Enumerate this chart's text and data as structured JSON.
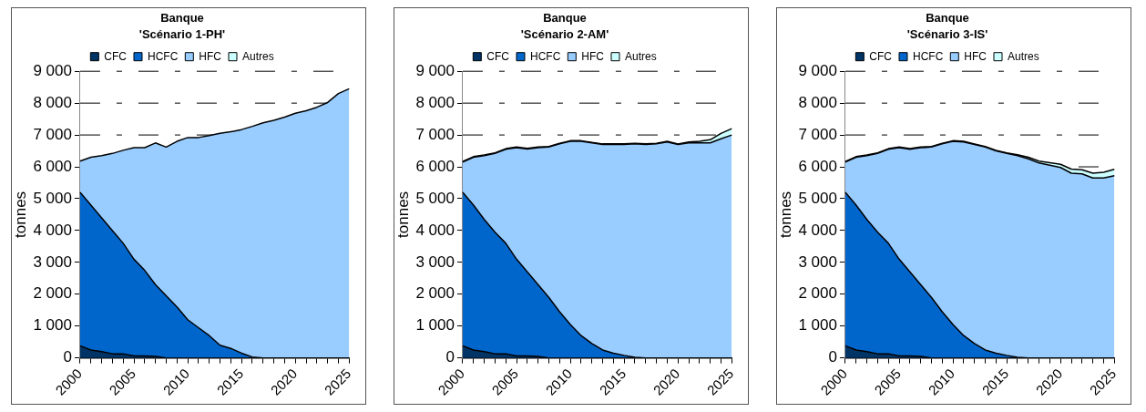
{
  "chart_data": [
    {
      "type": "area",
      "stacked": true,
      "title": "Banque",
      "subtitle": "'Scénario 1-PH'",
      "ylabel": "tonnes",
      "legend": "top",
      "grid": "y",
      "categories": [
        "2000",
        null,
        null,
        null,
        null,
        "2005",
        null,
        null,
        null,
        null,
        "2010",
        null,
        null,
        null,
        null,
        "2015",
        null,
        null,
        null,
        null,
        "2020",
        null,
        null,
        null,
        null,
        "2025"
      ],
      "ylim": [
        0,
        9000
      ],
      "yticks": [
        {
          "value": 0,
          "label": "0"
        },
        {
          "value": 1000,
          "label": "1 000"
        },
        {
          "value": 2000,
          "label": "2 000"
        },
        {
          "value": 3000,
          "label": "3 000"
        },
        {
          "value": 4000,
          "label": "4 000"
        },
        {
          "value": 5000,
          "label": "5 000"
        },
        {
          "value": 6000,
          "label": "6 000"
        },
        {
          "value": 7000,
          "label": "7 000"
        },
        {
          "value": 8000,
          "label": "8 000"
        },
        {
          "value": 9000,
          "label": "9 000"
        }
      ],
      "series": [
        {
          "name": "CFC",
          "color": "#003366",
          "values": [
            380,
            250,
            200,
            130,
            130,
            60,
            60,
            50,
            0,
            0,
            0,
            0,
            0,
            0,
            0,
            0,
            0,
            0,
            0,
            0,
            0,
            0,
            0,
            0,
            0,
            0
          ]
        },
        {
          "name": "HCFC",
          "color": "#0066cc",
          "values": [
            4820,
            4550,
            4200,
            3870,
            3470,
            3040,
            2690,
            2250,
            1950,
            1600,
            1200,
            950,
            700,
            400,
            300,
            150,
            30,
            0,
            0,
            0,
            0,
            0,
            0,
            0,
            0,
            0
          ]
        },
        {
          "name": "HFC",
          "color": "#99ccff",
          "values": [
            980,
            1500,
            1950,
            2420,
            2920,
            3500,
            3850,
            4450,
            4670,
            5200,
            5720,
            5970,
            6280,
            6650,
            6800,
            7020,
            7240,
            7380,
            7460,
            7560,
            7680,
            7760,
            7870,
            8020,
            8300,
            8450
          ]
        },
        {
          "name": "Autres",
          "color": "#ccffff",
          "values": [
            null,
            null,
            null,
            null,
            null,
            null,
            null,
            null,
            null,
            null,
            null,
            null,
            null,
            null,
            null,
            null,
            null,
            null,
            null,
            null,
            null,
            null,
            null,
            null,
            null,
            null
          ]
        }
      ]
    },
    {
      "type": "area",
      "stacked": true,
      "title": "Banque",
      "subtitle": "'Scénario 2-AM'",
      "ylabel": "tonnes",
      "legend": "top",
      "grid": "y",
      "categories": [
        "2000",
        null,
        null,
        null,
        null,
        "2005",
        null,
        null,
        null,
        null,
        "2010",
        null,
        null,
        null,
        null,
        "2015",
        null,
        null,
        null,
        null,
        "2020",
        null,
        null,
        null,
        null,
        "2025"
      ],
      "ylim": [
        0,
        9000
      ],
      "yticks": [
        {
          "value": 0,
          "label": "0"
        },
        {
          "value": 1000,
          "label": "1 000"
        },
        {
          "value": 2000,
          "label": "2 000"
        },
        {
          "value": 3000,
          "label": "3 000"
        },
        {
          "value": 4000,
          "label": "4 000"
        },
        {
          "value": 5000,
          "label": "5 000"
        },
        {
          "value": 6000,
          "label": "6 000"
        },
        {
          "value": 7000,
          "label": "7 000"
        },
        {
          "value": 8000,
          "label": "8 000"
        },
        {
          "value": 9000,
          "label": "9 000"
        }
      ],
      "series": [
        {
          "name": "CFC",
          "color": "#003366",
          "values": [
            380,
            250,
            200,
            130,
            130,
            60,
            60,
            50,
            0,
            0,
            0,
            0,
            0,
            0,
            0,
            0,
            0,
            0,
            0,
            0,
            0,
            0,
            0,
            0,
            0,
            0
          ]
        },
        {
          "name": "HCFC",
          "color": "#0066cc",
          "values": [
            4820,
            4550,
            4150,
            3820,
            3470,
            3040,
            2640,
            2250,
            1900,
            1450,
            1050,
            700,
            450,
            250,
            150,
            80,
            20,
            0,
            0,
            0,
            0,
            0,
            0,
            0,
            0,
            0
          ]
        },
        {
          "name": "HFC",
          "color": "#99ccff",
          "values": [
            950,
            1500,
            2000,
            2470,
            2950,
            3500,
            3860,
            4300,
            4720,
            5270,
            5750,
            6100,
            6300,
            6450,
            6550,
            6620,
            6700,
            6700,
            6720,
            6780,
            6700,
            6750,
            6750,
            6750,
            6880,
            7000
          ]
        },
        {
          "name": "Autres",
          "color": "#ccffff",
          "values": [
            20,
            20,
            20,
            20,
            20,
            20,
            20,
            20,
            20,
            20,
            20,
            20,
            20,
            20,
            20,
            20,
            20,
            20,
            20,
            20,
            20,
            30,
            50,
            100,
            170,
            200
          ]
        }
      ]
    },
    {
      "type": "area",
      "stacked": true,
      "title": "Banque",
      "subtitle": "'Scénario 3-IS'",
      "ylabel": "tonnes",
      "legend": "top",
      "grid": "y",
      "categories": [
        "2000",
        null,
        null,
        null,
        null,
        "2005",
        null,
        null,
        null,
        null,
        "2010",
        null,
        null,
        null,
        null,
        "2015",
        null,
        null,
        null,
        null,
        "2020",
        null,
        null,
        null,
        null,
        "2025"
      ],
      "ylim": [
        0,
        9000
      ],
      "yticks": [
        {
          "value": 0,
          "label": "0"
        },
        {
          "value": 1000,
          "label": "1 000"
        },
        {
          "value": 2000,
          "label": "2 000"
        },
        {
          "value": 3000,
          "label": "3 000"
        },
        {
          "value": 4000,
          "label": "4 000"
        },
        {
          "value": 5000,
          "label": "5 000"
        },
        {
          "value": 6000,
          "label": "6 000"
        },
        {
          "value": 7000,
          "label": "7 000"
        },
        {
          "value": 8000,
          "label": "8 000"
        },
        {
          "value": 9000,
          "label": "9 000"
        }
      ],
      "series": [
        {
          "name": "CFC",
          "color": "#003366",
          "values": [
            380,
            250,
            200,
            130,
            130,
            60,
            60,
            50,
            0,
            0,
            0,
            0,
            0,
            0,
            0,
            0,
            0,
            0,
            0,
            0,
            0,
            0,
            0,
            0,
            0,
            0
          ]
        },
        {
          "name": "HCFC",
          "color": "#0066cc",
          "values": [
            4820,
            4550,
            4150,
            3820,
            3470,
            3040,
            2640,
            2250,
            1900,
            1450,
            1050,
            700,
            450,
            250,
            150,
            80,
            20,
            0,
            0,
            0,
            0,
            0,
            0,
            0,
            0,
            0
          ]
        },
        {
          "name": "HFC",
          "color": "#99ccff",
          "values": [
            950,
            1500,
            2000,
            2470,
            2950,
            3500,
            3850,
            4300,
            4720,
            5270,
            5750,
            6080,
            6250,
            6370,
            6350,
            6340,
            6330,
            6250,
            6120,
            6050,
            5980,
            5800,
            5780,
            5650,
            5650,
            5720
          ]
        },
        {
          "name": "Autres",
          "color": "#ccffff",
          "values": [
            20,
            20,
            20,
            20,
            20,
            20,
            20,
            20,
            20,
            20,
            20,
            20,
            20,
            20,
            20,
            20,
            30,
            50,
            60,
            80,
            100,
            130,
            130,
            150,
            180,
            200
          ]
        }
      ]
    }
  ]
}
